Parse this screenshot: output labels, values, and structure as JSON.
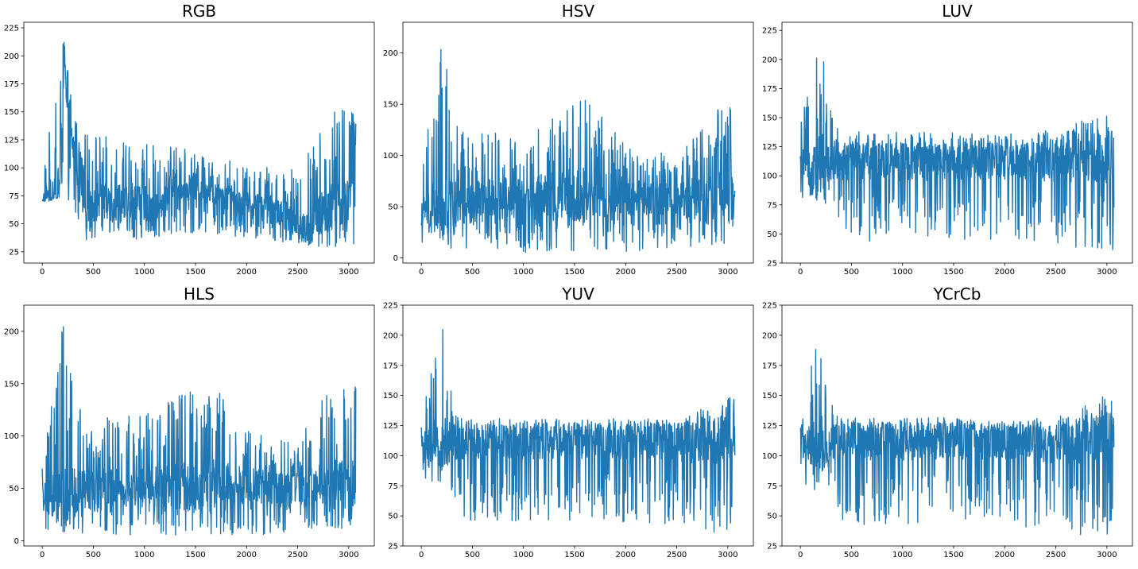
{
  "figure": {
    "background": "#ffffff",
    "line_color": "#1f77b4"
  },
  "chart_data": [
    {
      "type": "line",
      "title": "RGB",
      "xlabel": "",
      "ylabel": "",
      "xlim": [
        -180,
        3250
      ],
      "ylim": [
        15,
        230
      ],
      "xticks": [
        0,
        500,
        1000,
        1500,
        2000,
        2500,
        3000
      ],
      "yticks": [
        25,
        50,
        75,
        100,
        125,
        150,
        175,
        200,
        225
      ],
      "n_points": 3072,
      "series": [
        {
          "color": "#1f77b4",
          "keypoints": [
            [
              0,
              72
            ],
            [
              60,
              80
            ],
            [
              120,
              74
            ],
            [
              170,
              82
            ],
            [
              200,
              150
            ],
            [
              215,
              221
            ],
            [
              240,
              150
            ],
            [
              300,
              120
            ],
            [
              360,
              95
            ],
            [
              400,
              75
            ],
            [
              500,
              70
            ],
            [
              600,
              72
            ],
            [
              700,
              68
            ],
            [
              800,
              70
            ],
            [
              900,
              72
            ],
            [
              1000,
              68
            ],
            [
              1100,
              65
            ],
            [
              1200,
              68
            ],
            [
              1260,
              85
            ],
            [
              1400,
              84
            ],
            [
              1600,
              80
            ],
            [
              1800,
              75
            ],
            [
              2000,
              68
            ],
            [
              2200,
              65
            ],
            [
              2400,
              58
            ],
            [
              2500,
              50
            ],
            [
              2600,
              45
            ],
            [
              2700,
              55
            ],
            [
              2800,
              65
            ],
            [
              2900,
              70
            ],
            [
              3000,
              70
            ],
            [
              3072,
              145
            ]
          ],
          "band_low": [
            [
              0,
              68
            ],
            [
              200,
              75
            ],
            [
              300,
              60
            ],
            [
              400,
              35
            ],
            [
              600,
              40
            ],
            [
              1000,
              35
            ],
            [
              1500,
              42
            ],
            [
              2000,
              38
            ],
            [
              2500,
              32
            ],
            [
              3000,
              25
            ],
            [
              3072,
              30
            ]
          ],
          "band_high": [
            [
              0,
              85
            ],
            [
              200,
              221
            ],
            [
              300,
              155
            ],
            [
              400,
              130
            ],
            [
              600,
              128
            ],
            [
              1000,
              125
            ],
            [
              1500,
              115
            ],
            [
              2000,
              105
            ],
            [
              2500,
              100
            ],
            [
              2800,
              155
            ],
            [
              3072,
              155
            ]
          ]
        }
      ]
    },
    {
      "type": "line",
      "title": "HSV",
      "xlabel": "",
      "ylabel": "",
      "xlim": [
        -180,
        3250
      ],
      "ylim": [
        -5,
        230
      ],
      "xticks": [
        0,
        500,
        1000,
        1500,
        2000,
        2500,
        3000
      ],
      "yticks": [
        0,
        50,
        100,
        150,
        200
      ],
      "n_points": 3072,
      "series": [
        {
          "color": "#1f77b4",
          "keypoints": [
            [
              0,
              45
            ],
            [
              500,
              55
            ],
            [
              1000,
              60
            ],
            [
              1500,
              62
            ],
            [
              2000,
              60
            ],
            [
              2500,
              58
            ],
            [
              3000,
              60
            ],
            [
              3072,
              60
            ]
          ],
          "band_low": [
            [
              0,
              15
            ],
            [
              300,
              8
            ],
            [
              1000,
              5
            ],
            [
              1500,
              5
            ],
            [
              2000,
              5
            ],
            [
              2500,
              10
            ],
            [
              3072,
              12
            ]
          ],
          "band_high": [
            [
              0,
              80
            ],
            [
              200,
              221
            ],
            [
              300,
              150
            ],
            [
              400,
              125
            ],
            [
              1000,
              120
            ],
            [
              1620,
              158
            ],
            [
              2000,
              110
            ],
            [
              2500,
              100
            ],
            [
              2800,
              150
            ],
            [
              3072,
              152
            ]
          ]
        }
      ]
    },
    {
      "type": "line",
      "title": "LUV",
      "xlabel": "",
      "ylabel": "",
      "xlim": [
        -180,
        3250
      ],
      "ylim": [
        25,
        232
      ],
      "xticks": [
        0,
        500,
        1000,
        1500,
        2000,
        2500,
        3000
      ],
      "yticks": [
        25,
        50,
        75,
        100,
        125,
        150,
        175,
        200,
        225
      ],
      "n_points": 3072,
      "series": [
        {
          "color": "#1f77b4",
          "keypoints": [
            [
              0,
              110
            ],
            [
              500,
              112
            ],
            [
              1000,
              112
            ],
            [
              1500,
              112
            ],
            [
              2000,
              112
            ],
            [
              2500,
              112
            ],
            [
              3072,
              115
            ]
          ],
          "band_low": [
            [
              0,
              80
            ],
            [
              300,
              75
            ],
            [
              400,
              45
            ],
            [
              1000,
              42
            ],
            [
              1500,
              45
            ],
            [
              2000,
              45
            ],
            [
              2500,
              40
            ],
            [
              3072,
              35
            ]
          ],
          "band_high": [
            [
              0,
              145
            ],
            [
              215,
              223
            ],
            [
              300,
              158
            ],
            [
              400,
              138
            ],
            [
              1000,
              138
            ],
            [
              2000,
              136
            ],
            [
              2500,
              140
            ],
            [
              3072,
              158
            ]
          ]
        }
      ]
    },
    {
      "type": "line",
      "title": "HLS",
      "xlabel": "",
      "ylabel": "",
      "xlim": [
        -180,
        3250
      ],
      "ylim": [
        -5,
        225
      ],
      "xticks": [
        0,
        500,
        1000,
        1500,
        2000,
        2500,
        3000
      ],
      "yticks": [
        0,
        50,
        100,
        150,
        200
      ],
      "n_points": 3072,
      "series": [
        {
          "color": "#1f77b4",
          "keypoints": [
            [
              0,
              40
            ],
            [
              500,
              50
            ],
            [
              1000,
              52
            ],
            [
              1500,
              55
            ],
            [
              2000,
              52
            ],
            [
              2500,
              50
            ],
            [
              3072,
              55
            ]
          ],
          "band_low": [
            [
              0,
              12
            ],
            [
              300,
              5
            ],
            [
              1000,
              5
            ],
            [
              1500,
              5
            ],
            [
              2000,
              5
            ],
            [
              2500,
              8
            ],
            [
              3072,
              10
            ]
          ],
          "band_high": [
            [
              0,
              78
            ],
            [
              215,
              217
            ],
            [
              300,
              145
            ],
            [
              400,
              120
            ],
            [
              1000,
              120
            ],
            [
              1630,
              158
            ],
            [
              2000,
              105
            ],
            [
              2500,
              95
            ],
            [
              2800,
              148
            ],
            [
              3072,
              148
            ]
          ]
        }
      ]
    },
    {
      "type": "line",
      "title": "YUV",
      "xlabel": "",
      "ylabel": "",
      "xlim": [
        -180,
        3250
      ],
      "ylim": [
        25,
        225
      ],
      "xticks": [
        0,
        500,
        1000,
        1500,
        2000,
        2500,
        3000
      ],
      "yticks": [
        25,
        50,
        75,
        100,
        125,
        150,
        175,
        200,
        225
      ],
      "n_points": 3072,
      "series": [
        {
          "color": "#1f77b4",
          "keypoints": [
            [
              0,
              110
            ],
            [
              500,
              112
            ],
            [
              1000,
              112
            ],
            [
              1500,
              112
            ],
            [
              2000,
              112
            ],
            [
              2500,
              110
            ],
            [
              3072,
              115
            ]
          ],
          "band_low": [
            [
              0,
              72
            ],
            [
              300,
              70
            ],
            [
              400,
              45
            ],
            [
              1000,
              45
            ],
            [
              1500,
              45
            ],
            [
              2000,
              45
            ],
            [
              2500,
              38
            ],
            [
              3072,
              35
            ]
          ],
          "band_high": [
            [
              0,
              131
            ],
            [
              215,
              218
            ],
            [
              300,
              150
            ],
            [
              400,
              131
            ],
            [
              1000,
              131
            ],
            [
              2000,
              131
            ],
            [
              2500,
              131
            ],
            [
              2900,
              150
            ],
            [
              3072,
              148
            ]
          ]
        }
      ]
    },
    {
      "type": "line",
      "title": "YCrCb",
      "xlabel": "",
      "ylabel": "",
      "xlim": [
        -180,
        3250
      ],
      "ylim": [
        25,
        225
      ],
      "xticks": [
        0,
        500,
        1000,
        1500,
        2000,
        2500,
        3000
      ],
      "yticks": [
        25,
        50,
        75,
        100,
        125,
        150,
        175,
        200,
        225
      ],
      "n_points": 3072,
      "series": [
        {
          "color": "#1f77b4",
          "keypoints": [
            [
              0,
              110
            ],
            [
              500,
              112
            ],
            [
              1000,
              112
            ],
            [
              1500,
              112
            ],
            [
              2000,
              112
            ],
            [
              2500,
              110
            ],
            [
              3072,
              115
            ]
          ],
          "band_low": [
            [
              0,
              72
            ],
            [
              300,
              70
            ],
            [
              400,
              43
            ],
            [
              1000,
              42
            ],
            [
              1500,
              45
            ],
            [
              2000,
              45
            ],
            [
              2500,
              35
            ],
            [
              3072,
              32
            ]
          ],
          "band_high": [
            [
              0,
              131
            ],
            [
              215,
              218
            ],
            [
              300,
              148
            ],
            [
              400,
              132
            ],
            [
              1000,
              132
            ],
            [
              2000,
              131
            ],
            [
              2500,
              131
            ],
            [
              2900,
              150
            ],
            [
              3072,
              148
            ]
          ]
        }
      ]
    }
  ]
}
